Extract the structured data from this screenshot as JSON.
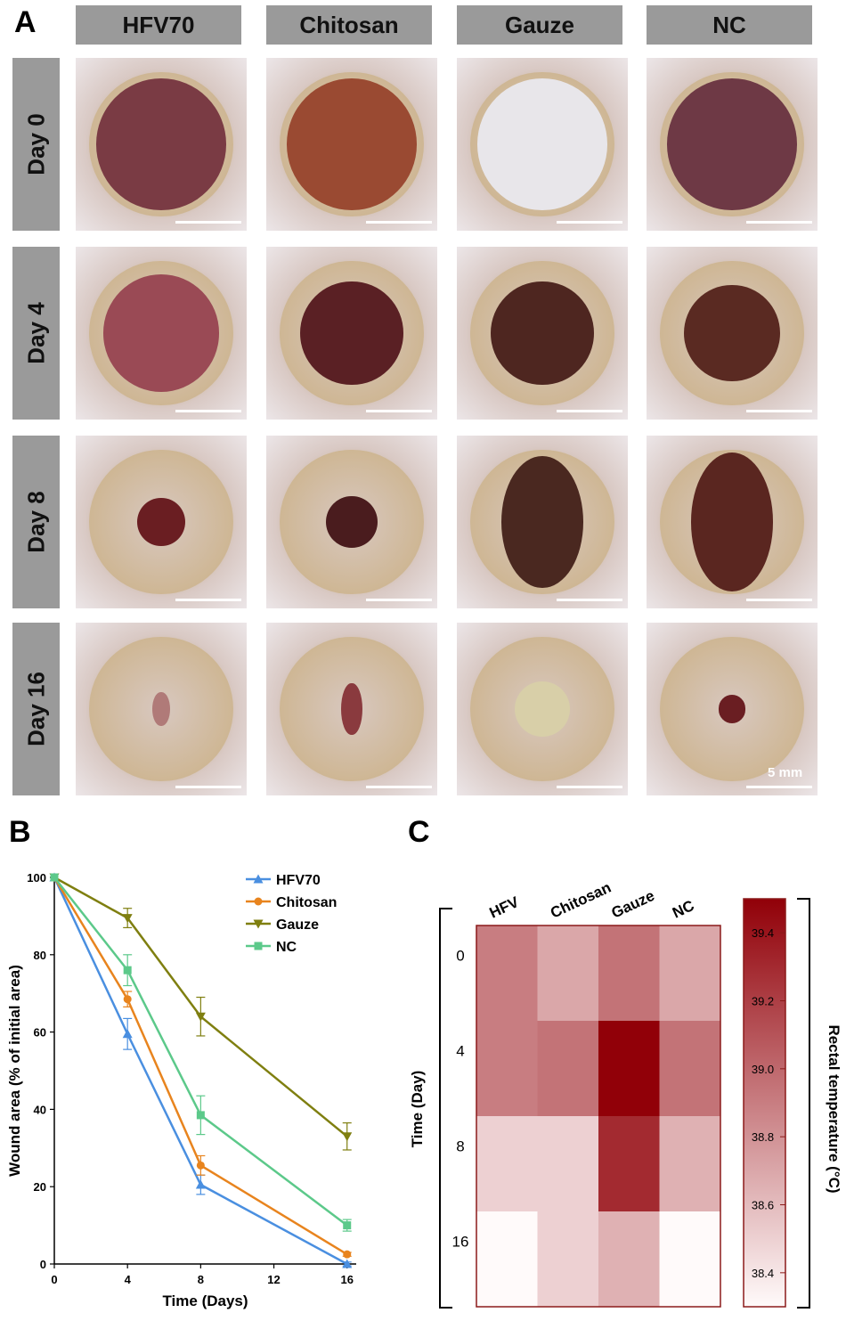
{
  "panels": {
    "a": "A",
    "b": "B",
    "c": "C"
  },
  "panel_a": {
    "columns": [
      "HFV70",
      "Chitosan",
      "Gauze",
      "NC"
    ],
    "rows": [
      "Day 0",
      "Day 4",
      "Day 8",
      "Day 16"
    ],
    "scale_label": "5 mm"
  },
  "chart_data": [
    {
      "type": "line",
      "xlabel": "Time (Days)",
      "ylabel": "Wound area (% of initial area)",
      "x": [
        0,
        4,
        8,
        16
      ],
      "xlim": [
        0,
        16.5
      ],
      "ylim": [
        0,
        100
      ],
      "xticks": [
        "0",
        "4",
        "8",
        "12",
        "16"
      ],
      "yticks": [
        "0",
        "20",
        "40",
        "60",
        "80",
        "100"
      ],
      "legend_position": "top-right",
      "series": [
        {
          "name": "HFV70",
          "color": "#4a8fe0",
          "marker": "triangle-up",
          "values": [
            100,
            59.5,
            20.5,
            0
          ],
          "errors": [
            0,
            4,
            2.5,
            0.5
          ]
        },
        {
          "name": "Chitosan",
          "color": "#e8841e",
          "marker": "circle",
          "values": [
            100,
            68.5,
            25.5,
            2.5
          ],
          "errors": [
            0,
            2,
            2.5,
            0.5
          ]
        },
        {
          "name": "Gauze",
          "color": "#7f7f10",
          "marker": "triangle-down",
          "values": [
            100,
            89.5,
            64,
            33
          ],
          "errors": [
            0,
            2.5,
            5,
            3.5
          ]
        },
        {
          "name": "NC",
          "color": "#5cc98a",
          "marker": "square",
          "values": [
            100,
            76,
            38.5,
            10
          ],
          "errors": [
            0,
            4,
            5,
            1.5
          ]
        }
      ]
    },
    {
      "type": "heatmap",
      "columns": [
        "HFV",
        "Chitosan",
        "Gauze",
        "NC"
      ],
      "rows": [
        "0",
        "4",
        "8",
        "16"
      ],
      "ylabel": "Time (Day)",
      "colorbar_label": "Rectal temperature (°C)",
      "colorbar_ticks": [
        "38.4",
        "38.6",
        "38.8",
        "39.0",
        "39.2",
        "39.4"
      ],
      "vmin": 38.3,
      "vmax": 39.5,
      "values": [
        [
          38.9,
          38.7,
          38.95,
          38.7
        ],
        [
          38.9,
          38.95,
          39.5,
          38.95
        ],
        [
          38.5,
          38.5,
          39.3,
          38.65
        ],
        [
          38.3,
          38.5,
          38.65,
          38.3
        ]
      ]
    }
  ]
}
